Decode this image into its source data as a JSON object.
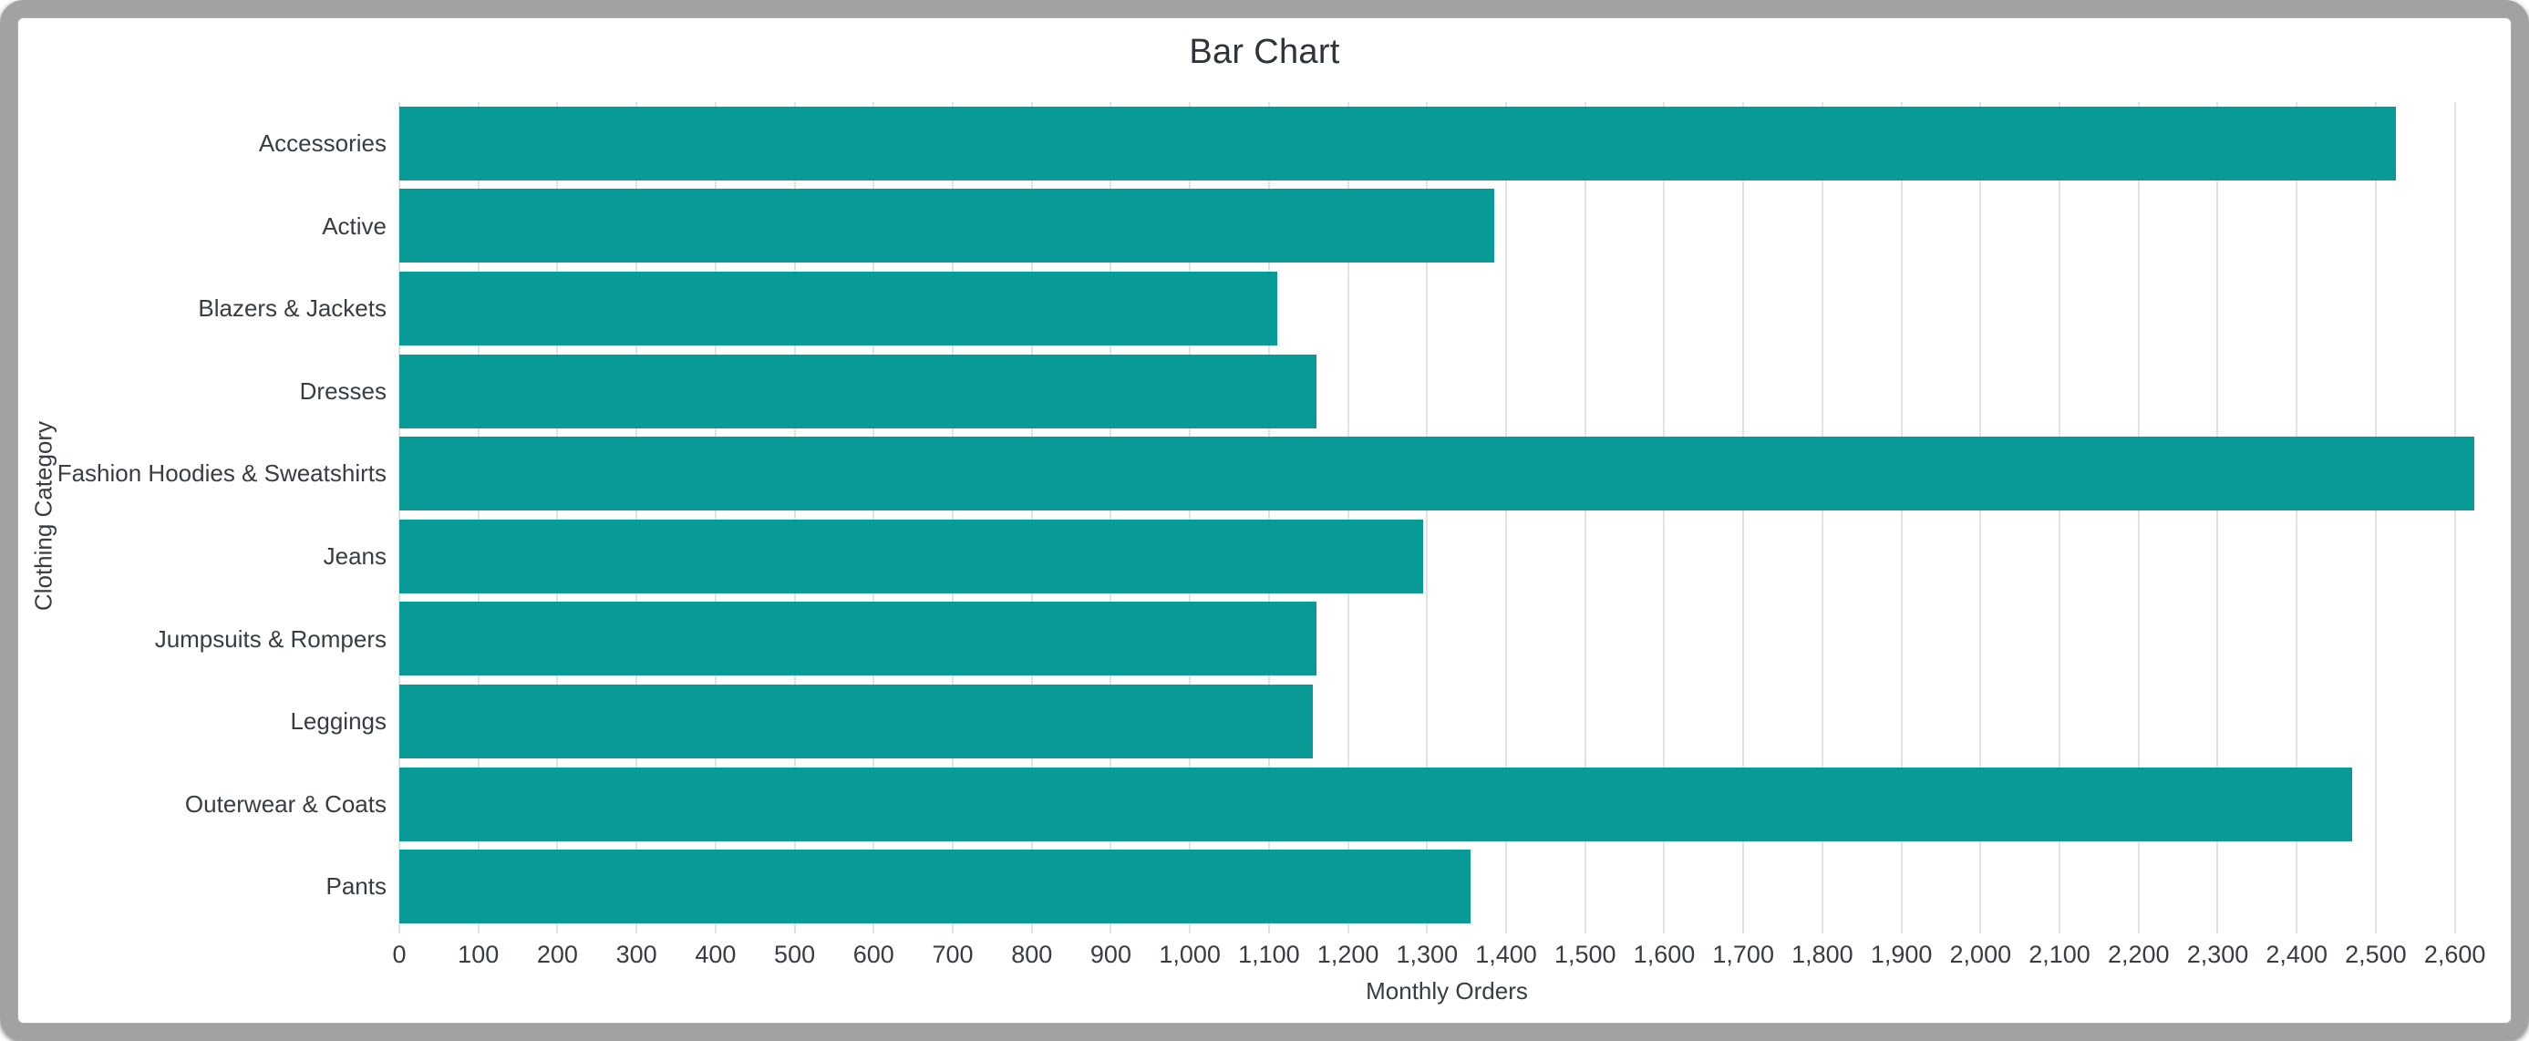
{
  "window": {
    "frame_color": "#a2a2a2",
    "background_color": "#ffffff"
  },
  "chart_data": {
    "type": "bar",
    "orientation": "horizontal",
    "title": "Bar Chart",
    "xlabel": "Monthly Orders",
    "ylabel": "Clothing Category",
    "categories": [
      "Accessories",
      "Active",
      "Blazers & Jackets",
      "Dresses",
      "Fashion Hoodies & Sweatshirts",
      "Jeans",
      "Jumpsuits & Rompers",
      "Leggings",
      "Outerwear & Coats",
      "Pants"
    ],
    "values": [
      2525,
      1385,
      1110,
      1160,
      2625,
      1295,
      1160,
      1155,
      2470,
      1355
    ],
    "xlim": [
      0,
      2650
    ],
    "xtick_values": [
      0,
      100,
      200,
      300,
      400,
      500,
      600,
      700,
      800,
      900,
      1000,
      1100,
      1200,
      1300,
      1400,
      1500,
      1600,
      1700,
      1800,
      1900,
      2000,
      2100,
      2200,
      2300,
      2400,
      2500,
      2600
    ],
    "xtick_labels": [
      "0",
      "100",
      "200",
      "300",
      "400",
      "500",
      "600",
      "700",
      "800",
      "900",
      "1,000",
      "1,100",
      "1,200",
      "1,300",
      "1,400",
      "1,500",
      "1,600",
      "1,700",
      "1,800",
      "1,900",
      "2,000",
      "2,100",
      "2,200",
      "2,300",
      "2,400",
      "2,500",
      "2,600"
    ],
    "grid": true,
    "legend": false,
    "bar_color": "#099b97",
    "grid_color": "#e2e2e2",
    "text_color": "#373d42"
  }
}
